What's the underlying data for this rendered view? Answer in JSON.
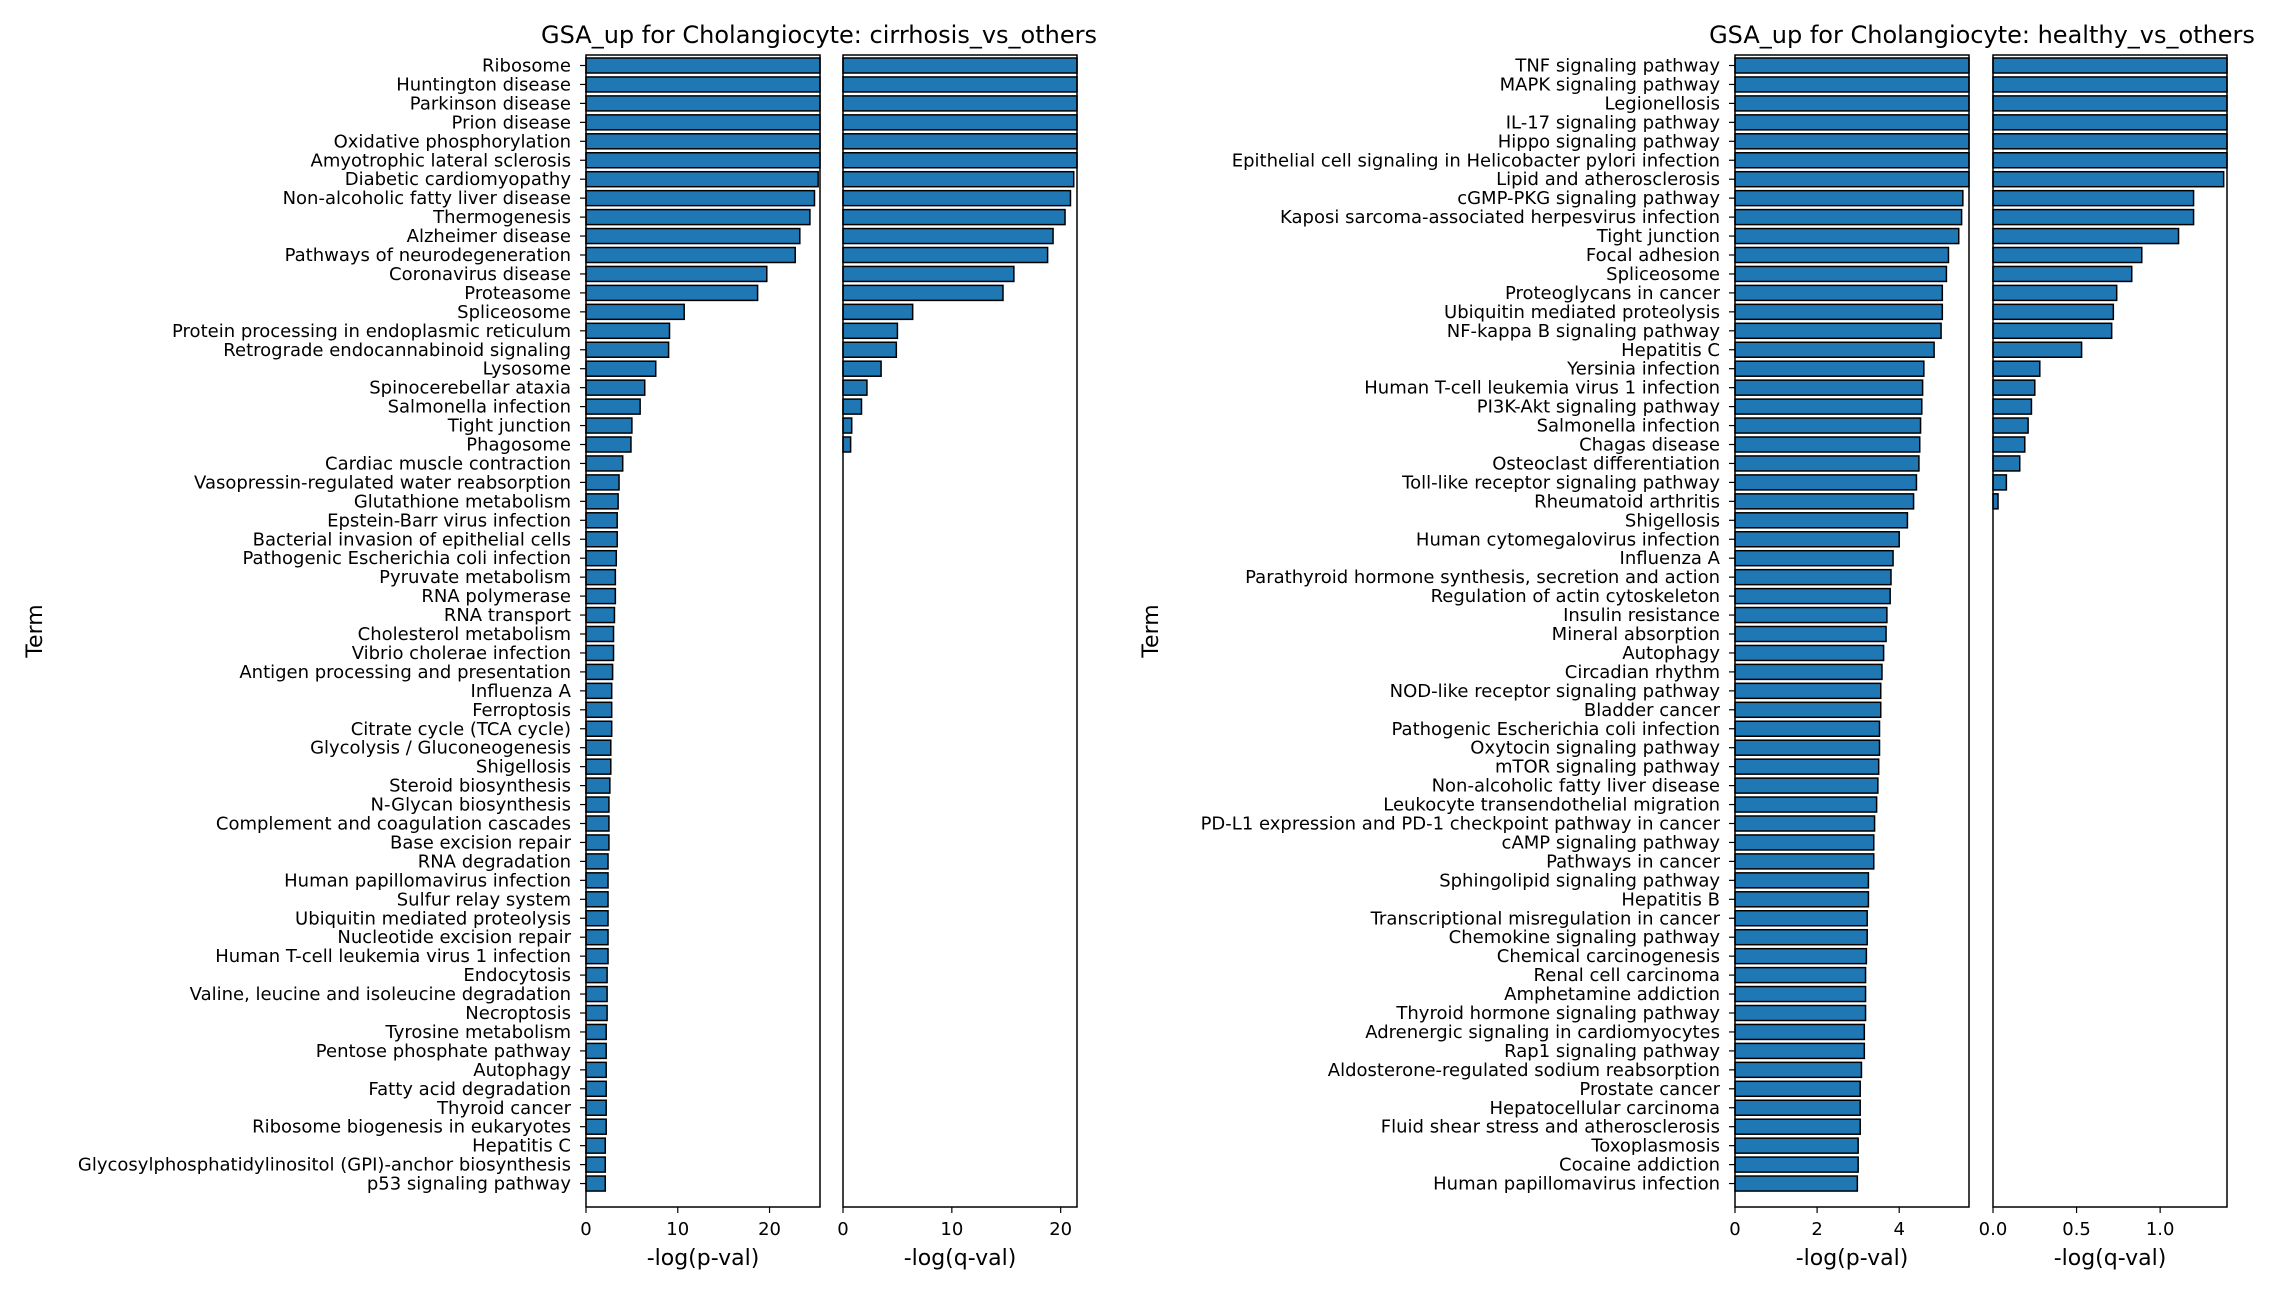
{
  "colors": {
    "bar": "#1f77b4",
    "edge": "#000000"
  },
  "chart_data": [
    {
      "type": "bar",
      "orientation": "horizontal",
      "title": "GSA_up for Cholangiocyte: cirrhosis_vs_others",
      "ylabel": "Term",
      "panel_xlabels": [
        "-log(p-val)",
        "-log(q-val)"
      ],
      "pval_xlim": [
        0,
        25.5
      ],
      "pval_xticks": [
        "0",
        "10",
        "20"
      ],
      "qval_xlim": [
        0,
        21.5
      ],
      "qval_xticks": [
        "0",
        "10",
        "20"
      ],
      "categories": [
        "Ribosome",
        "Huntington disease",
        "Parkinson disease",
        "Prion disease",
        "Oxidative phosphorylation",
        "Amyotrophic lateral sclerosis",
        "Diabetic cardiomyopathy",
        "Non-alcoholic fatty liver disease",
        "Thermogenesis",
        "Alzheimer disease",
        "Pathways of neurodegeneration",
        "Coronavirus disease",
        "Proteasome",
        "Spliceosome",
        "Protein processing in endoplasmic reticulum",
        "Retrograde endocannabinoid signaling",
        "Lysosome",
        "Spinocerebellar ataxia",
        "Salmonella infection",
        "Tight junction",
        "Phagosome",
        "Cardiac muscle contraction",
        "Vasopressin-regulated water reabsorption",
        "Glutathione metabolism",
        "Epstein-Barr virus infection",
        "Bacterial invasion of epithelial cells",
        "Pathogenic Escherichia coli infection",
        "Pyruvate metabolism",
        "RNA polymerase",
        "RNA transport",
        "Cholesterol metabolism",
        "Vibrio cholerae infection",
        "Antigen processing and presentation",
        "Influenza A",
        "Ferroptosis",
        "Citrate cycle (TCA cycle)",
        "Glycolysis / Gluconeogenesis",
        "Shigellosis",
        "Steroid biosynthesis",
        "N-Glycan biosynthesis",
        "Complement and coagulation cascades",
        "Base excision repair",
        "RNA degradation",
        "Human papillomavirus infection",
        "Sulfur relay system",
        "Ubiquitin mediated proteolysis",
        "Nucleotide excision repair",
        "Human T-cell leukemia virus 1 infection",
        "Endocytosis",
        "Valine, leucine and isoleucine degradation",
        "Necroptosis",
        "Tyrosine metabolism",
        "Pentose phosphate pathway",
        "Autophagy",
        "Fatty acid degradation",
        "Thyroid cancer",
        "Ribosome biogenesis in eukaryotes",
        "Hepatitis C",
        "Glycosylphosphatidylinositol (GPI)-anchor biosynthesis",
        "p53 signaling pathway"
      ],
      "series": [
        {
          "name": "-log(p-val)",
          "values": [
            25.5,
            25.5,
            25.5,
            25.5,
            25.5,
            25.5,
            25.3,
            24.9,
            24.4,
            23.3,
            22.8,
            19.7,
            18.7,
            10.7,
            9.1,
            9.0,
            7.6,
            6.4,
            5.9,
            5.0,
            4.9,
            4.0,
            3.6,
            3.5,
            3.4,
            3.4,
            3.3,
            3.2,
            3.2,
            3.1,
            3.0,
            3.0,
            2.9,
            2.8,
            2.8,
            2.8,
            2.7,
            2.7,
            2.6,
            2.5,
            2.5,
            2.5,
            2.4,
            2.4,
            2.4,
            2.4,
            2.4,
            2.4,
            2.3,
            2.3,
            2.3,
            2.2,
            2.2,
            2.2,
            2.2,
            2.2,
            2.2,
            2.1,
            2.1,
            2.1
          ]
        },
        {
          "name": "-log(q-val)",
          "values": [
            21.5,
            21.5,
            21.5,
            21.5,
            21.5,
            21.5,
            21.2,
            20.9,
            20.4,
            19.3,
            18.8,
            15.7,
            14.7,
            6.4,
            5.0,
            4.9,
            3.5,
            2.2,
            1.7,
            0.8,
            0.7,
            0,
            0,
            0,
            0,
            0,
            0,
            0,
            0,
            0,
            0,
            0,
            0,
            0,
            0,
            0,
            0,
            0,
            0,
            0,
            0,
            0,
            0,
            0,
            0,
            0,
            0,
            0,
            0,
            0,
            0,
            0,
            0,
            0,
            0,
            0,
            0,
            0,
            0,
            0
          ]
        }
      ]
    },
    {
      "type": "bar",
      "orientation": "horizontal",
      "title": "GSA_up for Cholangiocyte: healthy_vs_others",
      "ylabel": "Term",
      "panel_xlabels": [
        "-log(p-val)",
        "-log(q-val)"
      ],
      "pval_xlim": [
        0,
        5.7
      ],
      "pval_xticks": [
        "0",
        "2",
        "4"
      ],
      "qval_xlim": [
        0,
        1.4
      ],
      "qval_xticks": [
        "0.0",
        "0.5",
        "1.0"
      ],
      "categories": [
        "TNF signaling pathway",
        "MAPK signaling pathway",
        "Legionellosis",
        "IL-17 signaling pathway",
        "Hippo signaling pathway",
        "Epithelial cell signaling in Helicobacter pylori infection",
        "Lipid and atherosclerosis",
        "cGMP-PKG signaling pathway",
        "Kaposi sarcoma-associated herpesvirus infection",
        "Tight junction",
        "Focal adhesion",
        "Spliceosome",
        "Proteoglycans in cancer",
        "Ubiquitin mediated proteolysis",
        "NF-kappa B signaling pathway",
        "Hepatitis C",
        "Yersinia infection",
        "Human T-cell leukemia virus 1 infection",
        "PI3K-Akt signaling pathway",
        "Salmonella infection",
        "Chagas disease",
        "Osteoclast differentiation",
        "Toll-like receptor signaling pathway",
        "Rheumatoid arthritis",
        "Shigellosis",
        "Human cytomegalovirus infection",
        "Influenza A",
        "Parathyroid hormone synthesis, secretion and action",
        "Regulation of actin cytoskeleton",
        "Insulin resistance",
        "Mineral absorption",
        "Autophagy",
        "Circadian rhythm",
        "NOD-like receptor signaling pathway",
        "Bladder cancer",
        "Pathogenic Escherichia coli infection",
        "Oxytocin signaling pathway",
        "mTOR signaling pathway",
        "Non-alcoholic fatty liver disease",
        "Leukocyte transendothelial migration",
        "PD-L1 expression and PD-1 checkpoint pathway in cancer",
        "cAMP signaling pathway",
        "Pathways in cancer",
        "Sphingolipid signaling pathway",
        "Hepatitis B",
        "Transcriptional misregulation in cancer",
        "Chemokine signaling pathway",
        "Chemical carcinogenesis",
        "Renal cell carcinoma",
        "Amphetamine addiction",
        "Thyroid hormone signaling pathway",
        "Adrenergic signaling in cardiomyocytes",
        "Rap1 signaling pathway",
        "Aldosterone-regulated sodium reabsorption",
        "Prostate cancer",
        "Hepatocellular carcinoma",
        "Fluid shear stress and atherosclerosis",
        "Toxoplasmosis",
        "Cocaine addiction",
        "Human papillomavirus infection"
      ],
      "series": [
        {
          "name": "-log(p-val)",
          "values": [
            5.7,
            5.7,
            5.7,
            5.7,
            5.7,
            5.7,
            5.7,
            5.55,
            5.52,
            5.45,
            5.2,
            5.15,
            5.05,
            5.05,
            5.02,
            4.85,
            4.6,
            4.57,
            4.55,
            4.52,
            4.5,
            4.48,
            4.42,
            4.35,
            4.2,
            4.0,
            3.85,
            3.8,
            3.78,
            3.7,
            3.68,
            3.62,
            3.58,
            3.55,
            3.55,
            3.52,
            3.52,
            3.5,
            3.48,
            3.45,
            3.4,
            3.38,
            3.38,
            3.25,
            3.25,
            3.22,
            3.22,
            3.2,
            3.18,
            3.18,
            3.18,
            3.15,
            3.15,
            3.08,
            3.05,
            3.05,
            3.05,
            3.0,
            3.0,
            2.98
          ]
        },
        {
          "name": "-log(q-val)",
          "values": [
            1.4,
            1.4,
            1.4,
            1.4,
            1.4,
            1.4,
            1.38,
            1.2,
            1.2,
            1.11,
            0.89,
            0.83,
            0.74,
            0.72,
            0.71,
            0.53,
            0.28,
            0.25,
            0.23,
            0.21,
            0.19,
            0.16,
            0.08,
            0.03,
            0,
            0,
            0,
            0,
            0,
            0,
            0,
            0,
            0,
            0,
            0,
            0,
            0,
            0,
            0,
            0,
            0,
            0,
            0,
            0,
            0,
            0,
            0,
            0,
            0,
            0,
            0,
            0,
            0,
            0,
            0,
            0,
            0,
            0,
            0,
            0
          ]
        }
      ]
    }
  ]
}
